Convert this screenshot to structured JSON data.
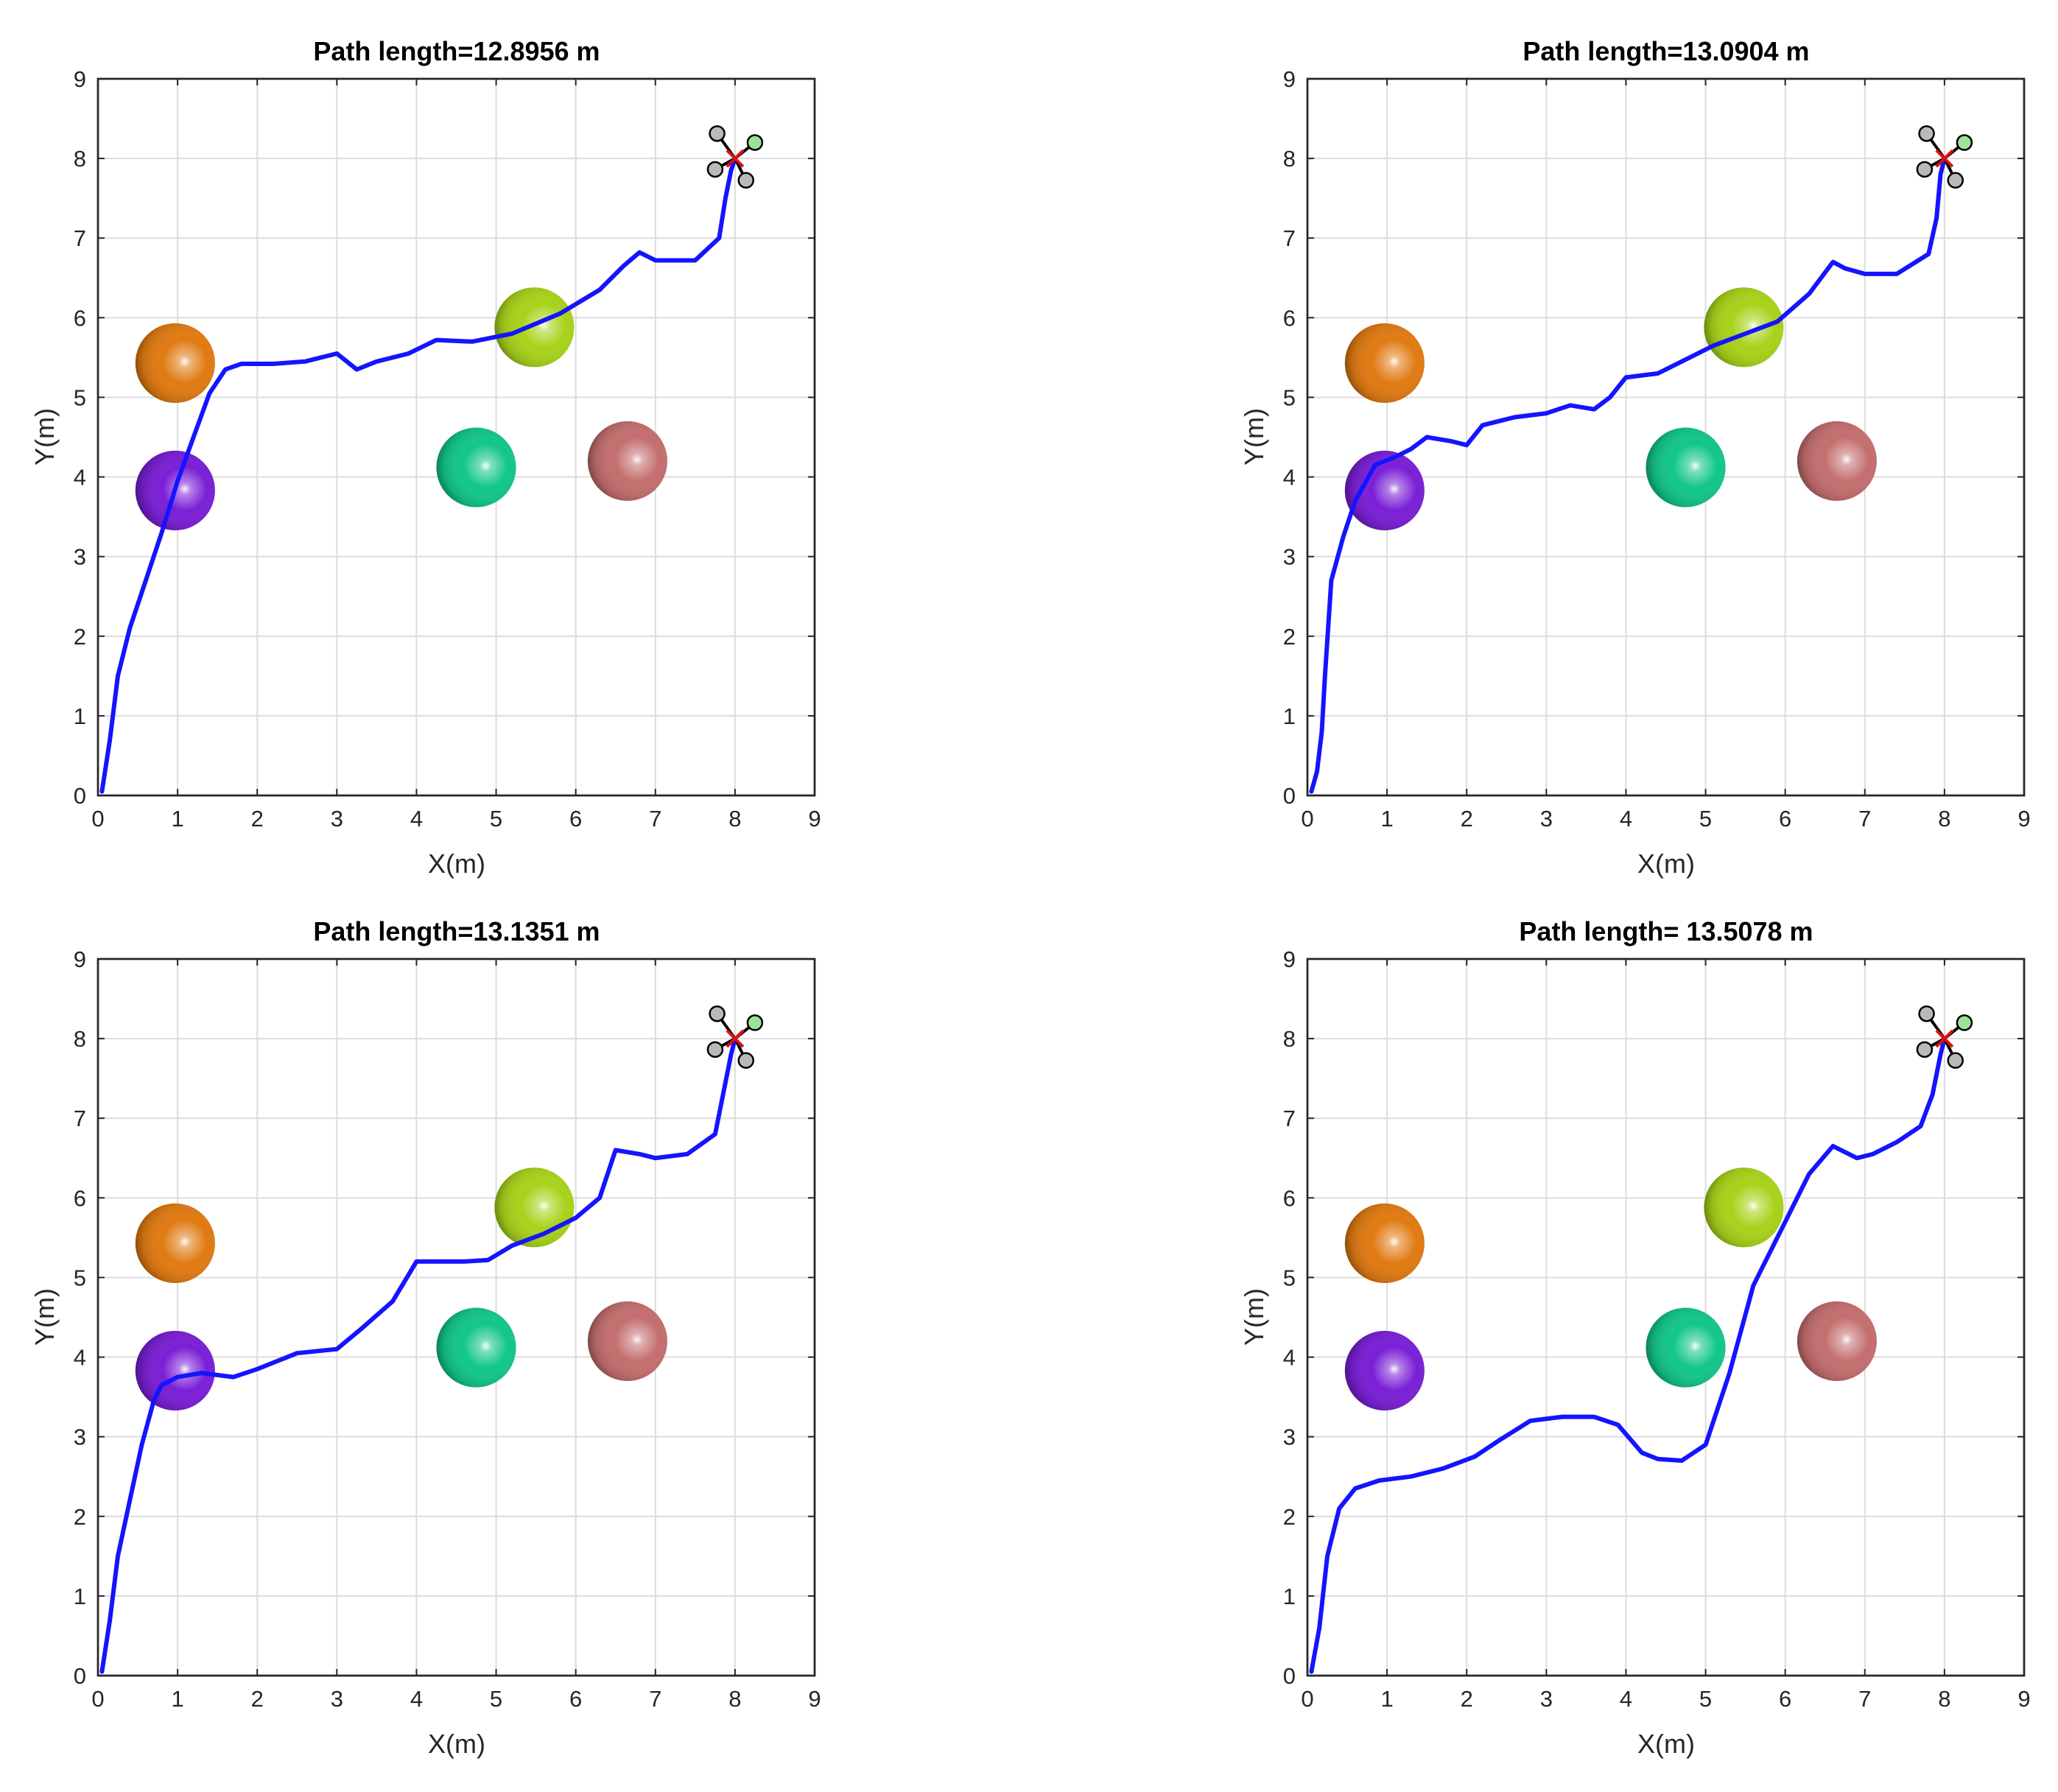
{
  "chart_data": [
    {
      "type": "line",
      "title": "Path length=12.8956 m",
      "xlabel": "X(m)",
      "ylabel": "Y(m)",
      "xlim": [
        0,
        9
      ],
      "ylim": [
        0,
        9
      ],
      "grid": true,
      "xticks": [
        "0",
        "1",
        "2",
        "3",
        "4",
        "5",
        "6",
        "7",
        "8",
        "9"
      ],
      "yticks": [
        "0",
        "1",
        "2",
        "3",
        "4",
        "5",
        "6",
        "7",
        "8",
        "9"
      ],
      "series": [
        {
          "name": "path",
          "x": [
            0.05,
            0.15,
            0.25,
            0.4,
            0.6,
            0.8,
            1.0,
            1.2,
            1.4,
            1.6,
            1.8,
            2.2,
            2.6,
            3.0,
            3.25,
            3.5,
            3.9,
            4.25,
            4.7,
            5.2,
            5.8,
            6.3,
            6.6,
            6.8,
            7.0,
            7.5,
            7.8,
            7.88,
            7.95,
            8.0
          ],
          "y": [
            0.05,
            0.7,
            1.5,
            2.1,
            2.7,
            3.3,
            3.95,
            4.5,
            5.05,
            5.35,
            5.42,
            5.42,
            5.45,
            5.55,
            5.35,
            5.45,
            5.55,
            5.72,
            5.7,
            5.8,
            6.05,
            6.35,
            6.65,
            6.82,
            6.72,
            6.72,
            7.0,
            7.5,
            7.85,
            8.0
          ]
        }
      ],
      "obstacles": [
        {
          "name": "orange-sphere",
          "x": 0.97,
          "y": 5.43,
          "r": 0.5,
          "color": "#e07a12"
        },
        {
          "name": "purple-sphere",
          "x": 0.97,
          "y": 3.83,
          "r": 0.5,
          "color": "#7a1fd6"
        },
        {
          "name": "teal-sphere",
          "x": 4.75,
          "y": 4.12,
          "r": 0.5,
          "color": "#12c68a"
        },
        {
          "name": "rose-sphere",
          "x": 6.65,
          "y": 4.2,
          "r": 0.5,
          "color": "#c46e6e"
        },
        {
          "name": "lime-sphere",
          "x": 5.48,
          "y": 5.88,
          "r": 0.5,
          "color": "#a8d21a"
        }
      ],
      "goal": {
        "x": 8.0,
        "y": 8.0
      }
    },
    {
      "type": "line",
      "title": "Path length=13.0904 m",
      "xlabel": "X(m)",
      "ylabel": "Y(m)",
      "xlim": [
        0,
        9
      ],
      "ylim": [
        0,
        9
      ],
      "grid": true,
      "xticks": [
        "0",
        "1",
        "2",
        "3",
        "4",
        "5",
        "6",
        "7",
        "8",
        "9"
      ],
      "yticks": [
        "0",
        "1",
        "2",
        "3",
        "4",
        "5",
        "6",
        "7",
        "8",
        "9"
      ],
      "series": [
        {
          "name": "path",
          "x": [
            0.05,
            0.12,
            0.18,
            0.22,
            0.3,
            0.45,
            0.6,
            0.85,
            1.1,
            1.3,
            1.5,
            1.8,
            2.0,
            2.2,
            2.6,
            3.0,
            3.3,
            3.6,
            3.8,
            4.0,
            4.4,
            4.8,
            5.1,
            5.5,
            5.9,
            6.3,
            6.6,
            6.75,
            7.0,
            7.4,
            7.8,
            7.9,
            7.95,
            8.0
          ],
          "y": [
            0.05,
            0.3,
            0.8,
            1.5,
            2.7,
            3.25,
            3.7,
            4.15,
            4.25,
            4.35,
            4.5,
            4.45,
            4.4,
            4.65,
            4.75,
            4.8,
            4.9,
            4.85,
            5.0,
            5.25,
            5.3,
            5.5,
            5.65,
            5.8,
            5.95,
            6.3,
            6.7,
            6.62,
            6.55,
            6.55,
            6.8,
            7.25,
            7.8,
            8.0
          ]
        }
      ],
      "obstacles": [
        {
          "name": "orange-sphere",
          "x": 0.97,
          "y": 5.43,
          "r": 0.5,
          "color": "#e07a12"
        },
        {
          "name": "purple-sphere",
          "x": 0.97,
          "y": 3.83,
          "r": 0.5,
          "color": "#7a1fd6"
        },
        {
          "name": "teal-sphere",
          "x": 4.75,
          "y": 4.12,
          "r": 0.5,
          "color": "#12c68a"
        },
        {
          "name": "rose-sphere",
          "x": 6.65,
          "y": 4.2,
          "r": 0.5,
          "color": "#c46e6e"
        },
        {
          "name": "lime-sphere",
          "x": 5.48,
          "y": 5.88,
          "r": 0.5,
          "color": "#a8d21a"
        }
      ],
      "goal": {
        "x": 8.0,
        "y": 8.0
      }
    },
    {
      "type": "line",
      "title": "Path length=13.1351 m",
      "xlabel": "X(m)",
      "ylabel": "Y(m)",
      "xlim": [
        0,
        9
      ],
      "ylim": [
        0,
        9
      ],
      "grid": true,
      "xticks": [
        "0",
        "1",
        "2",
        "3",
        "4",
        "5",
        "6",
        "7",
        "8",
        "9"
      ],
      "yticks": [
        "0",
        "1",
        "2",
        "3",
        "4",
        "5",
        "6",
        "7",
        "8",
        "9"
      ],
      "series": [
        {
          "name": "path",
          "x": [
            0.05,
            0.15,
            0.25,
            0.4,
            0.55,
            0.7,
            0.8,
            1.0,
            1.3,
            1.7,
            2.0,
            2.5,
            3.0,
            3.3,
            3.7,
            4.0,
            4.3,
            4.6,
            4.9,
            5.2,
            5.6,
            6.0,
            6.3,
            6.5,
            6.8,
            7.0,
            7.4,
            7.75,
            7.85,
            7.95,
            8.0
          ],
          "y": [
            0.05,
            0.7,
            1.5,
            2.2,
            2.9,
            3.45,
            3.65,
            3.75,
            3.8,
            3.75,
            3.85,
            4.05,
            4.1,
            4.35,
            4.7,
            5.2,
            5.2,
            5.2,
            5.22,
            5.4,
            5.55,
            5.75,
            6.0,
            6.6,
            6.55,
            6.5,
            6.55,
            6.8,
            7.3,
            7.8,
            8.0
          ]
        }
      ],
      "obstacles": [
        {
          "name": "orange-sphere",
          "x": 0.97,
          "y": 5.43,
          "r": 0.5,
          "color": "#e07a12"
        },
        {
          "name": "purple-sphere",
          "x": 0.97,
          "y": 3.83,
          "r": 0.5,
          "color": "#7a1fd6"
        },
        {
          "name": "teal-sphere",
          "x": 4.75,
          "y": 4.12,
          "r": 0.5,
          "color": "#12c68a"
        },
        {
          "name": "rose-sphere",
          "x": 6.65,
          "y": 4.2,
          "r": 0.5,
          "color": "#c46e6e"
        },
        {
          "name": "lime-sphere",
          "x": 5.48,
          "y": 5.88,
          "r": 0.5,
          "color": "#a8d21a"
        }
      ],
      "goal": {
        "x": 8.0,
        "y": 8.0
      }
    },
    {
      "type": "line",
      "title": "Path length= 13.5078 m",
      "xlabel": "X(m)",
      "ylabel": "Y(m)",
      "xlim": [
        0,
        9
      ],
      "ylim": [
        0,
        9
      ],
      "grid": true,
      "xticks": [
        "0",
        "1",
        "2",
        "3",
        "4",
        "5",
        "6",
        "7",
        "8",
        "9"
      ],
      "yticks": [
        "0",
        "1",
        "2",
        "3",
        "4",
        "5",
        "6",
        "7",
        "8",
        "9"
      ],
      "series": [
        {
          "name": "path",
          "x": [
            0.05,
            0.15,
            0.25,
            0.4,
            0.6,
            0.9,
            1.3,
            1.7,
            2.1,
            2.4,
            2.8,
            3.2,
            3.6,
            3.9,
            4.2,
            4.4,
            4.7,
            5.0,
            5.3,
            5.6,
            6.0,
            6.3,
            6.6,
            6.9,
            7.1,
            7.4,
            7.7,
            7.85,
            7.95,
            8.0
          ],
          "y": [
            0.05,
            0.6,
            1.5,
            2.1,
            2.35,
            2.45,
            2.5,
            2.6,
            2.75,
            2.95,
            3.2,
            3.25,
            3.25,
            3.15,
            2.8,
            2.72,
            2.7,
            2.9,
            3.8,
            4.9,
            5.7,
            6.3,
            6.65,
            6.5,
            6.55,
            6.7,
            6.9,
            7.3,
            7.8,
            8.0
          ]
        }
      ],
      "obstacles": [
        {
          "name": "orange-sphere",
          "x": 0.97,
          "y": 5.43,
          "r": 0.5,
          "color": "#e07a12"
        },
        {
          "name": "purple-sphere",
          "x": 0.97,
          "y": 3.83,
          "r": 0.5,
          "color": "#7a1fd6"
        },
        {
          "name": "teal-sphere",
          "x": 4.75,
          "y": 4.12,
          "r": 0.5,
          "color": "#12c68a"
        },
        {
          "name": "rose-sphere",
          "x": 6.65,
          "y": 4.2,
          "r": 0.5,
          "color": "#c46e6e"
        },
        {
          "name": "lime-sphere",
          "x": 5.48,
          "y": 5.88,
          "r": 0.5,
          "color": "#a8d21a"
        }
      ],
      "goal": {
        "x": 8.0,
        "y": 8.0
      }
    }
  ],
  "colors": {
    "path": "#1414ff",
    "axis": "#262626",
    "grid": "#dcdcdc",
    "goal_marker": "#e01010"
  }
}
